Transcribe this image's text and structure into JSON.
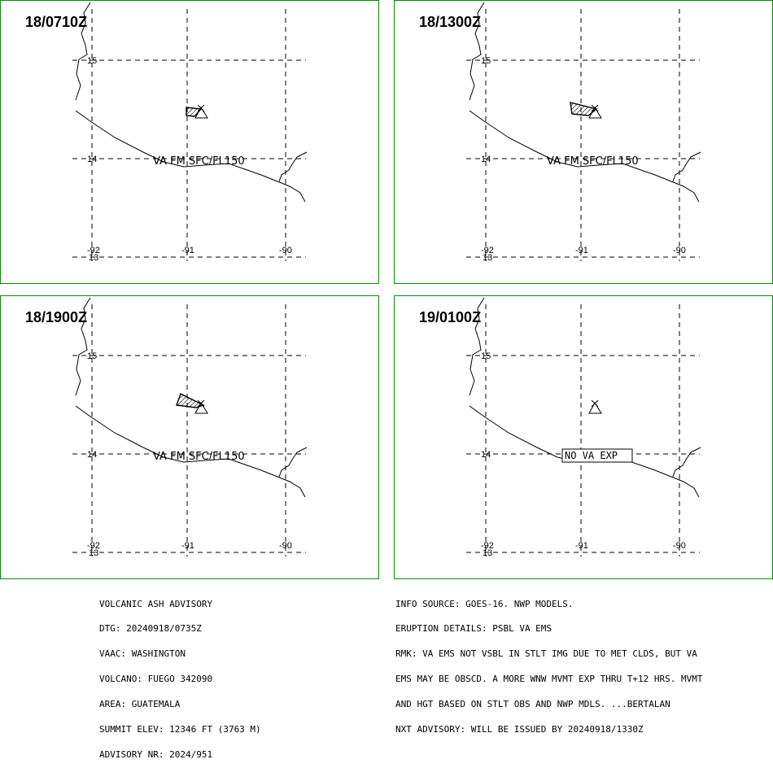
{
  "panels": [
    {
      "time": "18/0710Z",
      "label": "VA FM SFC/FL150",
      "plume": "small"
    },
    {
      "time": "18/1300Z",
      "label": "VA FM SFC/FL150",
      "plume": "medium"
    },
    {
      "time": "18/1900Z",
      "label": "VA FM SFC/FL150",
      "plume": "large"
    },
    {
      "time": "19/0100Z",
      "label": "NO VA EXP",
      "plume": "none"
    }
  ],
  "grid": {
    "lon_labels": [
      "-92",
      "-91",
      "-90"
    ],
    "lat_labels": [
      "15",
      "14",
      "13"
    ]
  },
  "advisory_left": [
    "VOLCANIC ASH ADVISORY",
    "DTG: 20240918/0735Z",
    "VAAC: WASHINGTON",
    "VOLCANO: FUEGO 342090",
    "AREA: GUATEMALA",
    "SUMMIT ELEV: 12346 FT (3763 M)",
    "ADVISORY NR: 2024/951"
  ],
  "advisory_right": [
    "INFO SOURCE: GOES-16. NWP MODELS.",
    "ERUPTION DETAILS: PSBL VA EMS",
    "RMK: VA EMS NOT VSBL IN STLT IMG DUE TO MET CLDS, BUT VA",
    "EMS MAY BE OBSCD. A MORE WNW MVMT EXP THRU T+12 HRS. MVMT",
    "AND HGT BASED ON STLT OBS AND NWP MDLS. ...BERTALAN",
    "NXT ADVISORY: WILL BE ISSUED BY 20240918/1330Z"
  ],
  "colors": {
    "panel_border": "#0a8a0a",
    "lines": "#000000"
  }
}
